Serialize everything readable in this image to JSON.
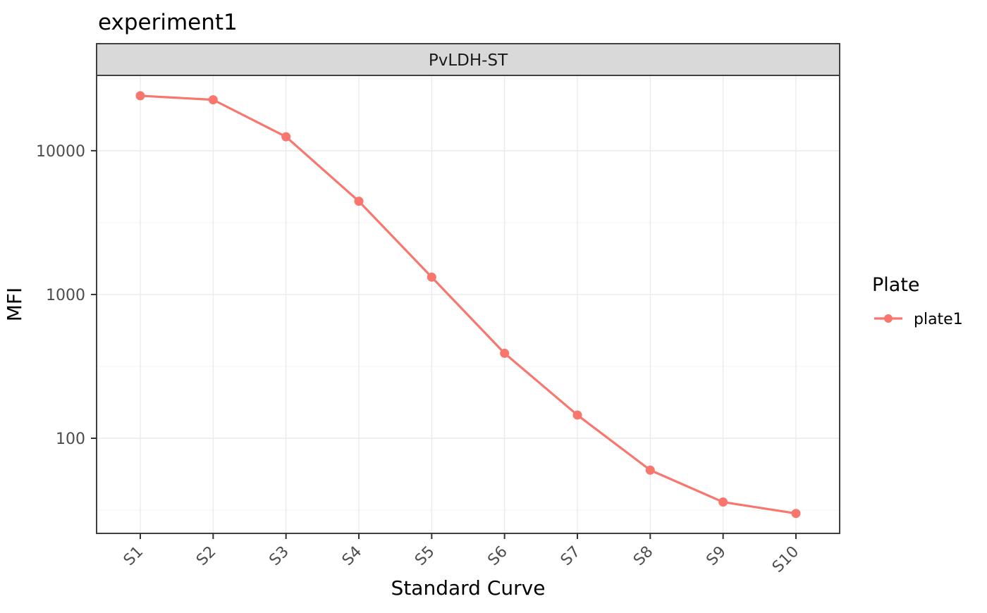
{
  "colors": {
    "accent": "#F8766D",
    "strip_fill": "#D9D9D9",
    "panel_border": "#404040",
    "panel_background": "#FFFFFF",
    "grid_major": "#EBEBEB",
    "grid_minor": "#F2F2F2",
    "tick_mark": "#333333",
    "tick_text": "#4D4D4D"
  },
  "chart_data": {
    "type": "line",
    "title": "experiment1",
    "facet_label": "PvLDH-ST",
    "xlabel": "Standard Curve",
    "ylabel": "MFI",
    "categories": [
      "S1",
      "S2",
      "S3",
      "S4",
      "S5",
      "S6",
      "S7",
      "S8",
      "S9",
      "S10"
    ],
    "series": [
      {
        "name": "plate1",
        "color": "#F8766D",
        "values": [
          24100,
          22600,
          12500,
          4450,
          1320,
          390,
          145,
          60,
          36,
          30
        ]
      }
    ],
    "y_scale": "log10",
    "ylim": [
      21.8,
      33400
    ],
    "y_major_ticks": [
      100,
      1000,
      10000
    ],
    "y_minor_ticks": [
      31.6,
      316,
      3162,
      31623
    ],
    "grid": true,
    "legend_title": "Plate",
    "legend_position": "right",
    "point_radius": 6.5,
    "line_width": 3.2
  }
}
